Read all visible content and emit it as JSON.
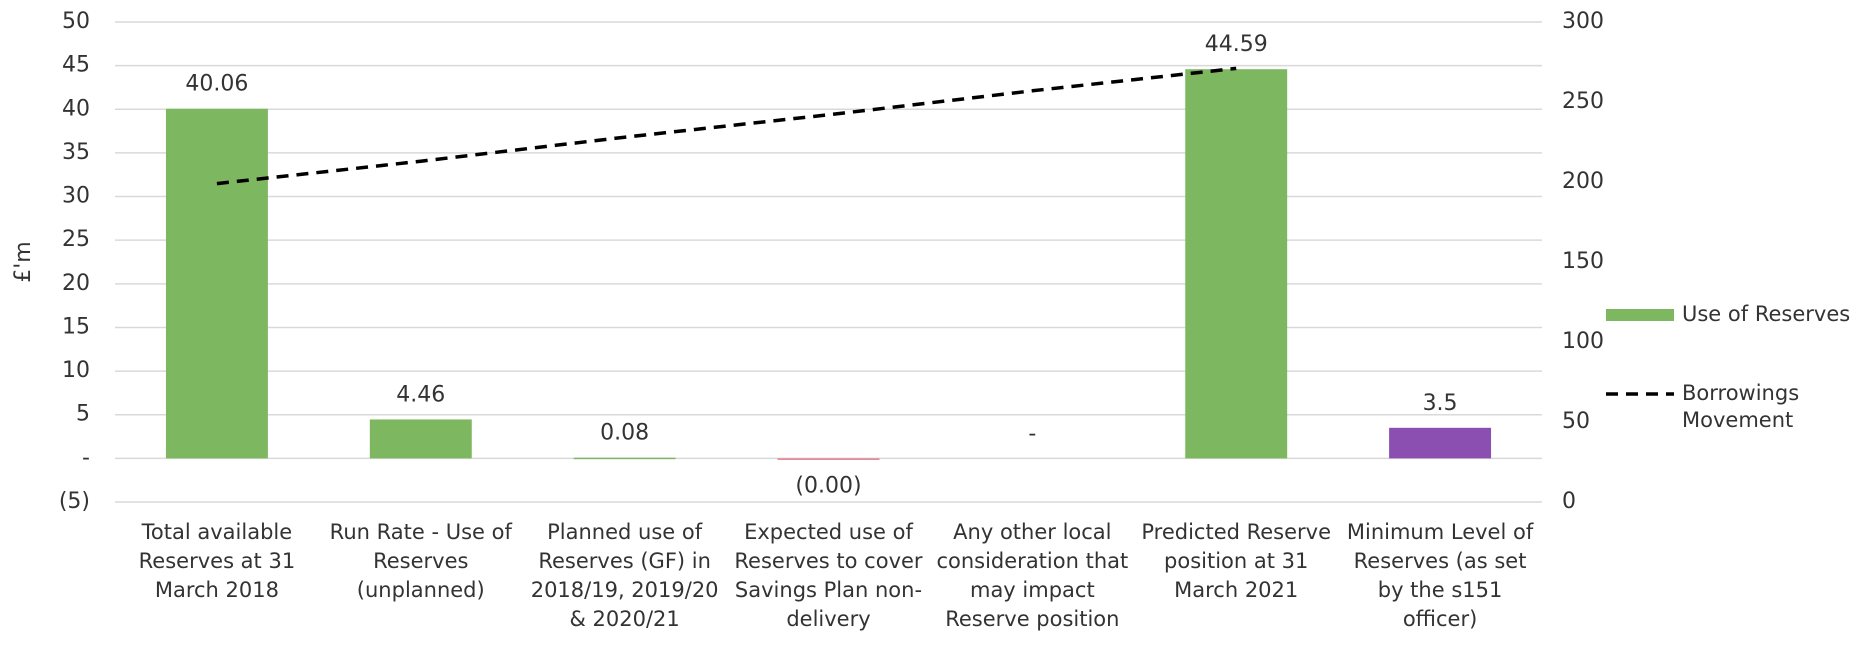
{
  "chart_data": {
    "type": "bar",
    "y_label": "£'m",
    "categories": [
      "Total available Reserves at 31 March 2018",
      "Run Rate - Use of Reserves (unplanned)",
      "Planned use of Reserves (GF) in 2018/19, 2019/20 & 2020/21",
      "Expected use of Reserves to cover Savings Plan non-delivery",
      "Any other local consideration that may impact Reserve position",
      "Predicted Reserve position at 31 March 2021",
      "Minimum Level of Reserves (as set by the s151 officer)"
    ],
    "series": [
      {
        "name": "Use of Reserves",
        "type": "bar",
        "colors": [
          "#7db75f",
          "#7db75f",
          "#7db75f",
          "#e07a8a",
          "#7db75f",
          "#7db75f",
          "#8a4fb0"
        ],
        "color": "#7db75f",
        "values": [
          40.06,
          4.46,
          0.08,
          -0.001,
          0,
          44.59,
          3.5
        ],
        "value_labels": [
          "40.06",
          "4.46",
          "0.08",
          "(0.00)",
          "-",
          "44.59",
          "3.5"
        ]
      },
      {
        "name": "Borrowings Movement",
        "type": "line",
        "axis": "y2",
        "color": "#000000",
        "dashed": true,
        "values": [
          199,
          213,
          228,
          242,
          257,
          271,
          null
        ]
      }
    ],
    "ylim": [
      -5,
      50
    ],
    "yticks": [
      {
        "value": -5,
        "label": "(5)"
      },
      {
        "value": 0,
        "label": "-"
      },
      5,
      10,
      15,
      20,
      25,
      30,
      35,
      40,
      45,
      50
    ],
    "y2lim": [
      0,
      300
    ],
    "y2ticks": [
      0,
      50,
      100,
      150,
      200,
      250,
      300
    ],
    "grid": true,
    "legend": "right"
  }
}
